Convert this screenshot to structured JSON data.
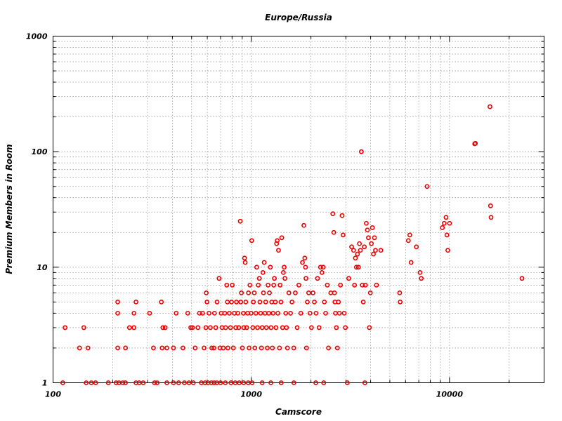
{
  "chart_data": {
    "type": "scatter",
    "title": "Europe/Russia",
    "xlabel": "Camscore",
    "ylabel": "Premium Members in Room",
    "x_scale": "log",
    "y_scale": "log",
    "xlim": [
      100,
      30000
    ],
    "ylim": [
      1,
      1000
    ],
    "x_ticks": [
      {
        "value": 100,
        "label": "100"
      },
      {
        "value": 1000,
        "label": "1000"
      },
      {
        "value": 10000,
        "label": "10000"
      }
    ],
    "y_ticks": [
      {
        "value": 1,
        "label": "1"
      },
      {
        "value": 10,
        "label": "10"
      },
      {
        "value": 100,
        "label": "100"
      },
      {
        "value": 1000,
        "label": "1000"
      }
    ],
    "grid": true,
    "marker_color": "#ee0000",
    "points": [
      [
        115,
        3
      ],
      [
        136,
        2
      ],
      [
        143,
        3
      ],
      [
        150,
        2
      ],
      [
        112,
        1
      ],
      [
        147,
        1
      ],
      [
        156,
        1
      ],
      [
        164,
        1
      ],
      [
        190,
        1
      ],
      [
        208,
        1
      ],
      [
        215,
        1
      ],
      [
        225,
        1
      ],
      [
        232,
        1
      ],
      [
        262,
        1
      ],
      [
        272,
        1
      ],
      [
        285,
        1
      ],
      [
        325,
        1
      ],
      [
        335,
        1
      ],
      [
        375,
        1
      ],
      [
        405,
        1
      ],
      [
        430,
        1
      ],
      [
        460,
        1
      ],
      [
        485,
        1
      ],
      [
        510,
        1
      ],
      [
        560,
        1
      ],
      [
        585,
        1
      ],
      [
        605,
        1
      ],
      [
        630,
        1
      ],
      [
        650,
        1
      ],
      [
        670,
        1
      ],
      [
        700,
        1
      ],
      [
        740,
        1
      ],
      [
        790,
        1
      ],
      [
        830,
        1
      ],
      [
        870,
        1
      ],
      [
        915,
        1
      ],
      [
        965,
        1
      ],
      [
        1010,
        1
      ],
      [
        1135,
        1
      ],
      [
        1255,
        1
      ],
      [
        1415,
        1
      ],
      [
        1640,
        1
      ],
      [
        2115,
        1
      ],
      [
        2320,
        1
      ],
      [
        3050,
        1
      ],
      [
        3740,
        1
      ],
      [
        212,
        5
      ],
      [
        212,
        4
      ],
      [
        212,
        2
      ],
      [
        232,
        2
      ],
      [
        243,
        3
      ],
      [
        256,
        3
      ],
      [
        256,
        4
      ],
      [
        262,
        5
      ],
      [
        307,
        4
      ],
      [
        321,
        2
      ],
      [
        352,
        5
      ],
      [
        355,
        2
      ],
      [
        358,
        3
      ],
      [
        368,
        3
      ],
      [
        375,
        2
      ],
      [
        405,
        2
      ],
      [
        418,
        4
      ],
      [
        452,
        2
      ],
      [
        478,
        4
      ],
      [
        495,
        3
      ],
      [
        505,
        3
      ],
      [
        521,
        2
      ],
      [
        538,
        3
      ],
      [
        548,
        4
      ],
      [
        568,
        4
      ],
      [
        578,
        2
      ],
      [
        590,
        3
      ],
      [
        593,
        6
      ],
      [
        598,
        5
      ],
      [
        612,
        4
      ],
      [
        622,
        3
      ],
      [
        632,
        2
      ],
      [
        648,
        2
      ],
      [
        652,
        4
      ],
      [
        662,
        3
      ],
      [
        672,
        5
      ],
      [
        688,
        8
      ],
      [
        695,
        2
      ],
      [
        705,
        4
      ],
      [
        712,
        3
      ],
      [
        722,
        2
      ],
      [
        735,
        4
      ],
      [
        742,
        3
      ],
      [
        752,
        7
      ],
      [
        758,
        5
      ],
      [
        762,
        2
      ],
      [
        775,
        4
      ],
      [
        785,
        3
      ],
      [
        795,
        5
      ],
      [
        802,
        7
      ],
      [
        812,
        2
      ],
      [
        822,
        4
      ],
      [
        835,
        3
      ],
      [
        842,
        5
      ],
      [
        855,
        4
      ],
      [
        865,
        3
      ],
      [
        880,
        25
      ],
      [
        885,
        5
      ],
      [
        892,
        6
      ],
      [
        902,
        2
      ],
      [
        912,
        4
      ],
      [
        918,
        3
      ],
      [
        925,
        12
      ],
      [
        932,
        11
      ],
      [
        938,
        5
      ],
      [
        948,
        3
      ],
      [
        958,
        4
      ],
      [
        968,
        6
      ],
      [
        975,
        2
      ],
      [
        985,
        7
      ],
      [
        998,
        4
      ],
      [
        1005,
        17
      ],
      [
        1018,
        3
      ],
      [
        1025,
        5
      ],
      [
        1035,
        6
      ],
      [
        1042,
        2
      ],
      [
        1055,
        4
      ],
      [
        1065,
        10
      ],
      [
        1075,
        3
      ],
      [
        1085,
        7
      ],
      [
        1098,
        8
      ],
      [
        1105,
        5
      ],
      [
        1115,
        4
      ],
      [
        1125,
        2
      ],
      [
        1135,
        3
      ],
      [
        1145,
        9
      ],
      [
        1152,
        6
      ],
      [
        1162,
        11
      ],
      [
        1172,
        4
      ],
      [
        1182,
        5
      ],
      [
        1192,
        3
      ],
      [
        1205,
        2
      ],
      [
        1215,
        7
      ],
      [
        1225,
        4
      ],
      [
        1235,
        6
      ],
      [
        1248,
        10
      ],
      [
        1258,
        3
      ],
      [
        1268,
        5
      ],
      [
        1278,
        2
      ],
      [
        1288,
        4
      ],
      [
        1298,
        7
      ],
      [
        1308,
        8
      ],
      [
        1322,
        5
      ],
      [
        1332,
        3
      ],
      [
        1342,
        16
      ],
      [
        1352,
        17
      ],
      [
        1362,
        4
      ],
      [
        1372,
        14
      ],
      [
        1388,
        2
      ],
      [
        1398,
        7
      ],
      [
        1412,
        5
      ],
      [
        1425,
        18
      ],
      [
        1438,
        3
      ],
      [
        1452,
        9
      ],
      [
        1465,
        10
      ],
      [
        1478,
        8
      ],
      [
        1492,
        4
      ],
      [
        1505,
        3
      ],
      [
        1522,
        2
      ],
      [
        1548,
        6
      ],
      [
        1578,
        4
      ],
      [
        1605,
        5
      ],
      [
        1638,
        2
      ],
      [
        1668,
        6
      ],
      [
        1705,
        3
      ],
      [
        1738,
        7
      ],
      [
        1778,
        4
      ],
      [
        1812,
        11
      ],
      [
        1842,
        23
      ],
      [
        1862,
        12
      ],
      [
        1878,
        10
      ],
      [
        1888,
        8
      ],
      [
        1898,
        2
      ],
      [
        1918,
        5
      ],
      [
        1948,
        6
      ],
      [
        1978,
        4
      ],
      [
        2012,
        3
      ],
      [
        2048,
        6
      ],
      [
        2082,
        5
      ],
      [
        2122,
        4
      ],
      [
        2158,
        8
      ],
      [
        2198,
        3
      ],
      [
        2235,
        10
      ],
      [
        2272,
        9
      ],
      [
        2305,
        10
      ],
      [
        2338,
        5
      ],
      [
        2372,
        4
      ],
      [
        2418,
        7
      ],
      [
        2452,
        2
      ],
      [
        2518,
        6
      ],
      [
        2578,
        29
      ],
      [
        2608,
        20
      ],
      [
        2628,
        6
      ],
      [
        2642,
        5
      ],
      [
        2658,
        4
      ],
      [
        2688,
        3
      ],
      [
        2718,
        2
      ],
      [
        2752,
        5
      ],
      [
        2782,
        4
      ],
      [
        2818,
        7
      ],
      [
        2872,
        28
      ],
      [
        2905,
        19
      ],
      [
        2942,
        4
      ],
      [
        2985,
        3
      ],
      [
        3102,
        8
      ],
      [
        3208,
        15
      ],
      [
        3282,
        14
      ],
      [
        3318,
        7
      ],
      [
        3352,
        12
      ],
      [
        3392,
        10
      ],
      [
        3432,
        13
      ],
      [
        3472,
        10
      ],
      [
        3512,
        16
      ],
      [
        3552,
        14
      ],
      [
        3592,
        100
      ],
      [
        3632,
        7
      ],
      [
        3672,
        5
      ],
      [
        3718,
        15
      ],
      [
        3762,
        7
      ],
      [
        3805,
        24
      ],
      [
        3852,
        21
      ],
      [
        3898,
        18
      ],
      [
        3942,
        3
      ],
      [
        3988,
        6
      ],
      [
        4035,
        16
      ],
      [
        4082,
        22
      ],
      [
        4132,
        13
      ],
      [
        4182,
        18
      ],
      [
        4232,
        14
      ],
      [
        4282,
        7
      ],
      [
        4505,
        14
      ],
      [
        5605,
        6
      ],
      [
        5638,
        5
      ],
      [
        6202,
        17
      ],
      [
        6305,
        19
      ],
      [
        6402,
        11
      ],
      [
        6805,
        15
      ],
      [
        7102,
        9
      ],
      [
        7205,
        8
      ],
      [
        7705,
        50
      ],
      [
        9205,
        22
      ],
      [
        9402,
        24
      ],
      [
        9605,
        27
      ],
      [
        9705,
        19
      ],
      [
        9805,
        14
      ],
      [
        10005,
        24
      ],
      [
        13402,
        117
      ],
      [
        13505,
        118
      ],
      [
        16002,
        245
      ],
      [
        16102,
        34
      ],
      [
        16202,
        27
      ],
      [
        23205,
        8
      ]
    ]
  }
}
